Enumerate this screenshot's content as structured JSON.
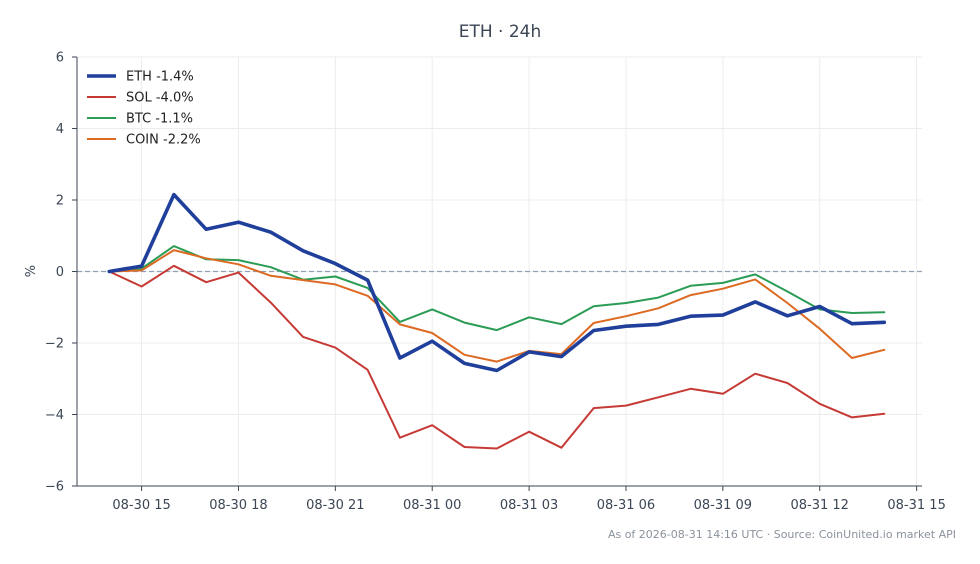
{
  "chart_data": {
    "type": "line",
    "title": "ETH · 24h",
    "xlabel": "",
    "ylabel": "%",
    "ylim": [
      -6,
      6
    ],
    "yticks": [
      -6,
      -4,
      -2,
      0,
      2,
      4,
      6
    ],
    "ytick_labels": [
      "−6",
      "−4",
      "−2",
      "0",
      "2",
      "4",
      "6"
    ],
    "xlim": [
      "2026-08-30 13:00",
      "2026-08-31 15:10"
    ],
    "xticks": [
      "2026-08-30 15:00",
      "2026-08-30 18:00",
      "2026-08-30 21:00",
      "2026-08-31 00:00",
      "2026-08-31 03:00",
      "2026-08-31 06:00",
      "2026-08-31 09:00",
      "2026-08-31 12:00",
      "2026-08-31 15:00"
    ],
    "xtick_labels": [
      "08-30 15",
      "08-30 18",
      "08-30 21",
      "08-31 00",
      "08-31 03",
      "08-31 06",
      "08-31 09",
      "08-31 12",
      "08-31 15"
    ],
    "x": [
      "2026-08-30 14:00",
      "2026-08-30 15:00",
      "2026-08-30 16:00",
      "2026-08-30 17:00",
      "2026-08-30 18:00",
      "2026-08-30 19:00",
      "2026-08-30 20:00",
      "2026-08-30 21:00",
      "2026-08-30 22:00",
      "2026-08-30 23:00",
      "2026-08-31 00:00",
      "2026-08-31 01:00",
      "2026-08-31 02:00",
      "2026-08-31 03:00",
      "2026-08-31 04:00",
      "2026-08-31 05:00",
      "2026-08-31 06:00",
      "2026-08-31 07:00",
      "2026-08-31 08:00",
      "2026-08-31 09:00",
      "2026-08-31 10:00",
      "2026-08-31 11:00",
      "2026-08-31 12:00",
      "2026-08-31 13:00",
      "2026-08-31 14:00"
    ],
    "series": [
      {
        "name": "ETH -1.4%",
        "color": "#1f3f9b",
        "bold": true,
        "values": [
          0,
          0.15,
          2.15,
          1.18,
          1.38,
          1.1,
          0.58,
          0.22,
          -0.24,
          -2.42,
          -1.95,
          -2.57,
          -2.77,
          -2.25,
          -2.38,
          -1.65,
          -1.53,
          -1.48,
          -1.25,
          -1.22,
          -0.85,
          -1.24,
          -0.98,
          -1.46,
          -1.42
        ]
      },
      {
        "name": "SOL -4.0%",
        "color": "#c63a35",
        "bold": false,
        "values": [
          0,
          -0.42,
          0.16,
          -0.3,
          -0.03,
          -0.87,
          -1.83,
          -2.13,
          -2.75,
          -4.65,
          -4.3,
          -4.91,
          -4.95,
          -4.48,
          -4.93,
          -3.82,
          -3.75,
          -3.52,
          -3.28,
          -3.42,
          -2.86,
          -3.12,
          -3.7,
          -4.08,
          -3.98
        ]
      },
      {
        "name": "BTC -1.1%",
        "color": "#2b9c55",
        "bold": false,
        "values": [
          0,
          0.08,
          0.71,
          0.34,
          0.32,
          0.12,
          -0.23,
          -0.14,
          -0.46,
          -1.41,
          -1.06,
          -1.43,
          -1.64,
          -1.28,
          -1.47,
          -0.97,
          -0.88,
          -0.73,
          -0.4,
          -0.32,
          -0.08,
          -0.56,
          -1.06,
          -1.16,
          -1.14
        ]
      },
      {
        "name": "COIN -2.2%",
        "color": "#dc6a23",
        "bold": false,
        "values": [
          0,
          0.03,
          0.6,
          0.37,
          0.2,
          -0.12,
          -0.24,
          -0.36,
          -0.68,
          -1.48,
          -1.72,
          -2.33,
          -2.52,
          -2.22,
          -2.31,
          -1.44,
          -1.25,
          -1.03,
          -0.66,
          -0.48,
          -0.22,
          -0.88,
          -1.6,
          -2.42,
          -2.19
        ]
      }
    ],
    "baseline": 0,
    "grid": true,
    "legend_position": "top-left"
  },
  "footer": "As of 2026-08-31 14:16 UTC · Source: CoinUnited.io market API"
}
